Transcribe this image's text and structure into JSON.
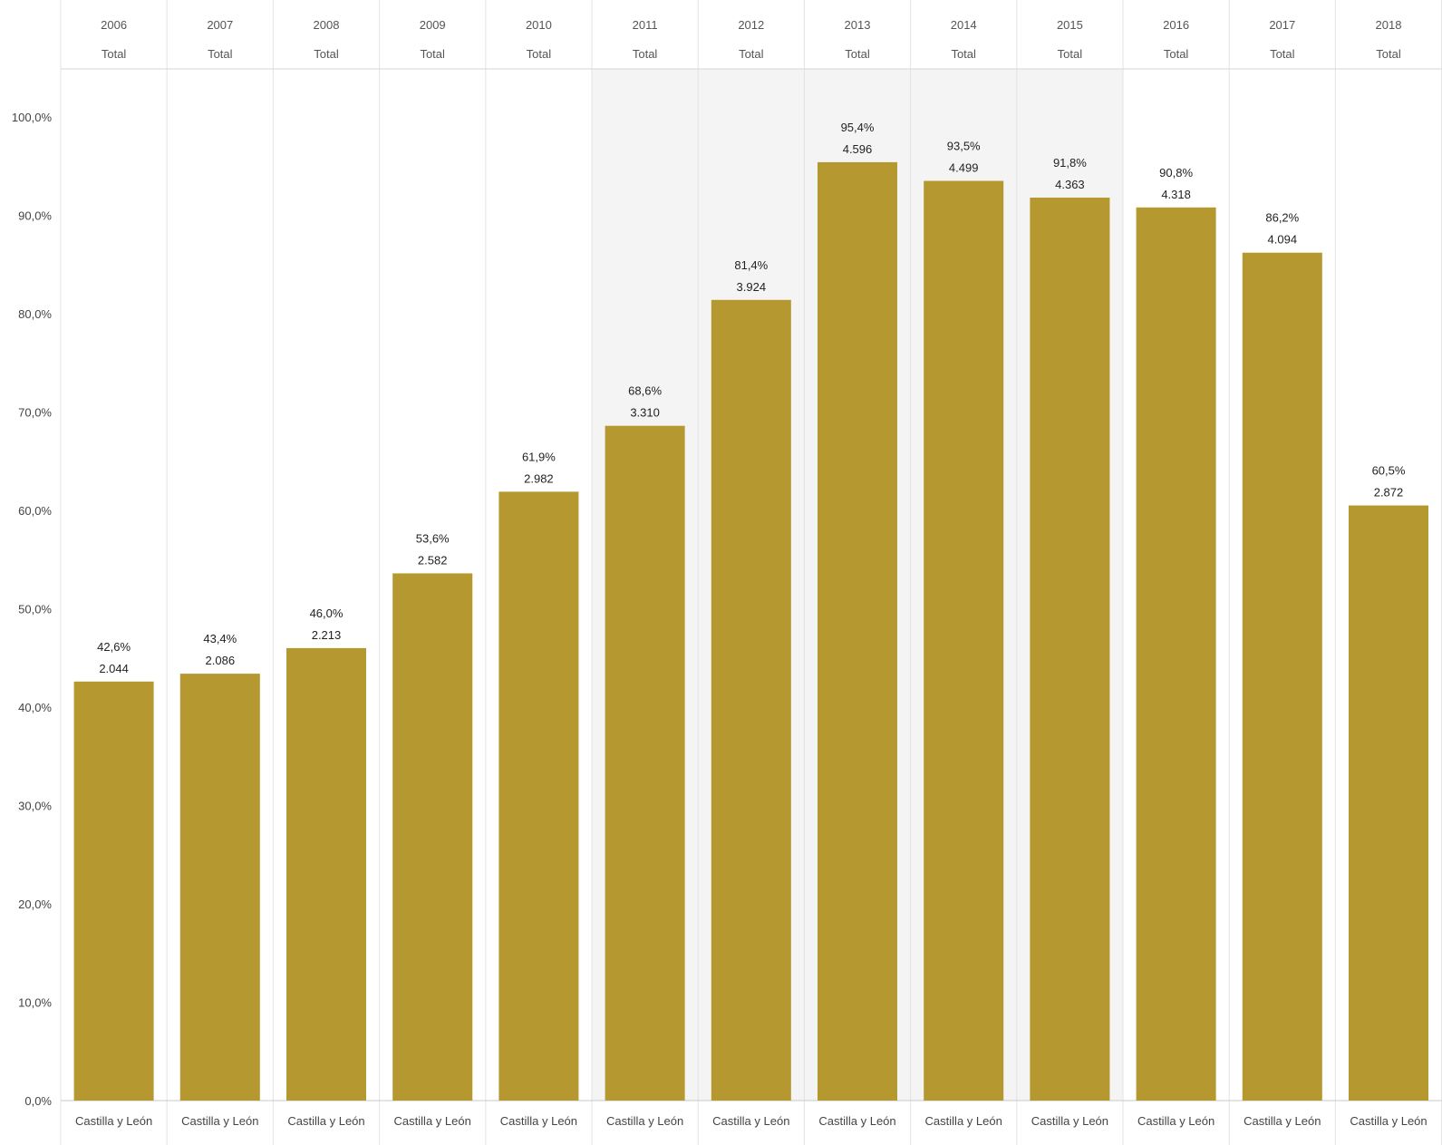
{
  "chart_data": {
    "type": "bar",
    "columns": [
      {
        "year": "2006",
        "subheader": "Total",
        "category": "Castilla y León",
        "percent": 42.6,
        "percent_label": "42,6%",
        "count": 2044,
        "count_label": "2.044"
      },
      {
        "year": "2007",
        "subheader": "Total",
        "category": "Castilla y León",
        "percent": 43.4,
        "percent_label": "43,4%",
        "count": 2086,
        "count_label": "2.086"
      },
      {
        "year": "2008",
        "subheader": "Total",
        "category": "Castilla y León",
        "percent": 46.0,
        "percent_label": "46,0%",
        "count": 2213,
        "count_label": "2.213"
      },
      {
        "year": "2009",
        "subheader": "Total",
        "category": "Castilla y León",
        "percent": 53.6,
        "percent_label": "53,6%",
        "count": 2582,
        "count_label": "2.582"
      },
      {
        "year": "2010",
        "subheader": "Total",
        "category": "Castilla y León",
        "percent": 61.9,
        "percent_label": "61,9%",
        "count": 2982,
        "count_label": "2.982"
      },
      {
        "year": "2011",
        "subheader": "Total",
        "category": "Castilla y León",
        "percent": 68.6,
        "percent_label": "68,6%",
        "count": 3310,
        "count_label": "3.310"
      },
      {
        "year": "2012",
        "subheader": "Total",
        "category": "Castilla y León",
        "percent": 81.4,
        "percent_label": "81,4%",
        "count": 3924,
        "count_label": "3.924"
      },
      {
        "year": "2013",
        "subheader": "Total",
        "category": "Castilla y León",
        "percent": 95.4,
        "percent_label": "95,4%",
        "count": 4596,
        "count_label": "4.596"
      },
      {
        "year": "2014",
        "subheader": "Total",
        "category": "Castilla y León",
        "percent": 93.5,
        "percent_label": "93,5%",
        "count": 4499,
        "count_label": "4.499"
      },
      {
        "year": "2015",
        "subheader": "Total",
        "category": "Castilla y León",
        "percent": 91.8,
        "percent_label": "91,8%",
        "count": 4363,
        "count_label": "4.363"
      },
      {
        "year": "2016",
        "subheader": "Total",
        "category": "Castilla y León",
        "percent": 90.8,
        "percent_label": "90,8%",
        "count": 4318,
        "count_label": "4.318"
      },
      {
        "year": "2017",
        "subheader": "Total",
        "category": "Castilla y León",
        "percent": 86.2,
        "percent_label": "86,2%",
        "count": 4094,
        "count_label": "4.094"
      },
      {
        "year": "2018",
        "subheader": "Total",
        "category": "Castilla y León",
        "percent": 60.5,
        "percent_label": "60,5%",
        "count": 2872,
        "count_label": "2.872"
      }
    ],
    "y_ticks": [
      "0,0%",
      "10,0%",
      "20,0%",
      "30,0%",
      "40,0%",
      "50,0%",
      "60,0%",
      "70,0%",
      "80,0%",
      "90,0%",
      "100,0%"
    ],
    "ylim": [
      0,
      100
    ],
    "bar_color": "#b5982f",
    "highlight_band_color": "#f4f4f4",
    "highlighted_years": [
      "2011",
      "2012",
      "2013",
      "2014",
      "2015"
    ],
    "grid": false
  }
}
